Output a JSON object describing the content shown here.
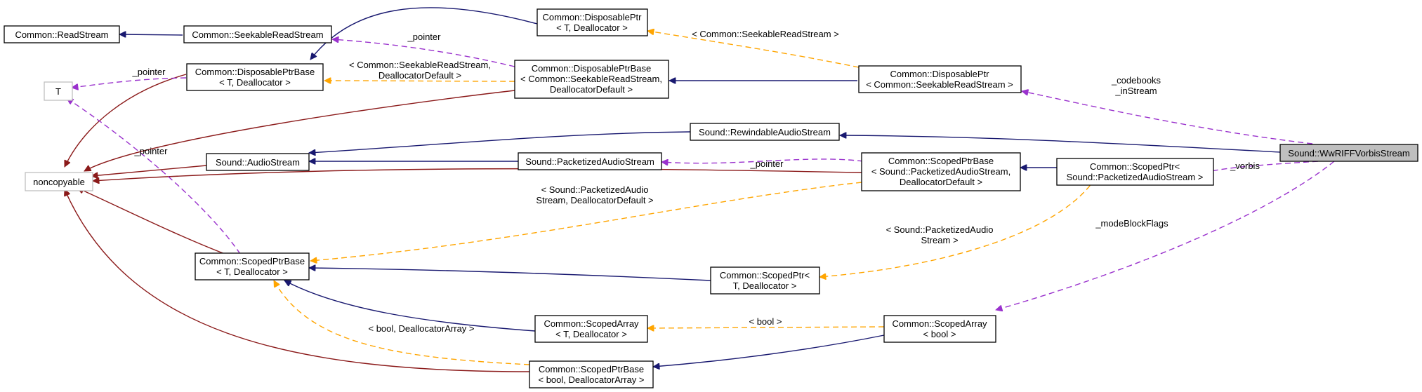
{
  "diagram": {
    "colors": {
      "inheritance": "#191970",
      "private_inheritance": "#8b1a1a",
      "usage": "#9a32cd",
      "template_instance": "#ffa500",
      "highlight_fill": "#bfbfbf"
    },
    "nodes": {
      "common_read_stream": [
        "Common::ReadStream"
      ],
      "common_seekable_read_stream": [
        "Common::SeekableReadStream"
      ],
      "common_disposable_ptr_t": [
        "Common::DisposablePtr",
        "< T, Deallocator >"
      ],
      "template_param_t_top": [
        "T"
      ],
      "common_disposable_ptr_base_t": [
        "Common::DisposablePtrBase",
        "< T, Deallocator >"
      ],
      "common_disposable_ptr_base_seekable": [
        "Common::DisposablePtrBase",
        "< Common::SeekableReadStream,",
        "DeallocatorDefault >"
      ],
      "common_disposable_ptr_seekable": [
        "Common::DisposablePtr",
        "< Common::SeekableReadStream >"
      ],
      "noncopyable": [
        "noncopyable"
      ],
      "sound_audio_stream": [
        "Sound::AudioStream"
      ],
      "sound_rewindable_audio_stream": [
        "Sound::RewindableAudioStream"
      ],
      "sound_packetized_audio_stream": [
        "Sound::PacketizedAudioStream"
      ],
      "sound_wwriff_vorbis_stream": [
        "Sound::WwRIFFVorbisStream"
      ],
      "common_scoped_ptr_base_packetized": [
        "Common::ScopedPtrBase",
        "< Sound::PacketizedAudioStream,",
        "DeallocatorDefault >"
      ],
      "common_scoped_ptr_packetized": [
        "Common::ScopedPtr<",
        "Sound::PacketizedAudioStream >"
      ],
      "common_scoped_ptr_base_t": [
        "Common::ScopedPtrBase",
        "< T, Deallocator >"
      ],
      "common_scoped_ptr_t": [
        "Common::ScopedPtr<",
        "T, Deallocator >"
      ],
      "common_scoped_array_t": [
        "Common::ScopedArray",
        "< T, Deallocator >"
      ],
      "common_scoped_array_bool": [
        "Common::ScopedArray",
        "< bool >"
      ],
      "common_scoped_ptr_base_bool": [
        "Common::ScopedPtrBase",
        "< bool, DeallocatorArray >"
      ]
    },
    "edge_labels": {
      "pointer_seekable": [
        "_pointer"
      ],
      "tmpl_seekable_read_stream": [
        "< Common::SeekableReadStream >"
      ],
      "pointer_t_top": [
        "_pointer"
      ],
      "tmpl_seekable_deallocator_default": [
        "< Common::SeekableReadStream,",
        "DeallocatorDefault >"
      ],
      "codebooks_in_stream": [
        "_codebooks",
        "_inStream"
      ],
      "pointer_t_bottom": [
        "_pointer"
      ],
      "pointer_packetized": [
        "_pointer"
      ],
      "vorbis": [
        "_vorbis"
      ],
      "tmpl_packetized_deallocator_default": [
        "< Sound::PacketizedAudio",
        "Stream, DeallocatorDefault >"
      ],
      "tmpl_packetized_audio_stream": [
        "< Sound::PacketizedAudio",
        "Stream >"
      ],
      "mode_block_flags": [
        "_modeBlockFlags"
      ],
      "tmpl_bool": [
        "< bool >"
      ],
      "tmpl_bool_deallocator_array": [
        "< bool, DeallocatorArray >"
      ]
    }
  }
}
